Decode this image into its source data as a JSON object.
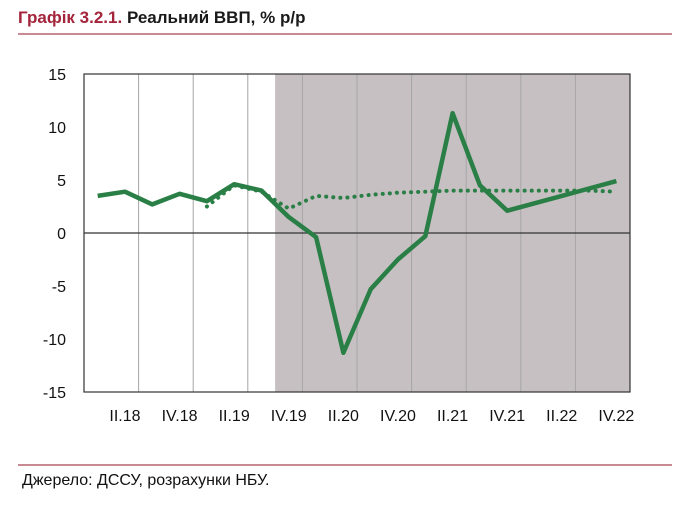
{
  "header": {
    "number": "Графік 3.2.1.",
    "title": "Реальний ВВП, % р/р"
  },
  "footer": {
    "source": "Джерело: ДССУ, розрахунки НБУ."
  },
  "colors": {
    "line": "#2a7f46",
    "shade": "#c7c0c2",
    "grid": "#a6a6a6",
    "accent": "#a4243b",
    "rule": "#c98a94"
  },
  "chart_data": {
    "type": "line",
    "ylim": [
      -15,
      15
    ],
    "yticks": [
      15,
      10,
      5,
      0,
      -5,
      -10,
      -15
    ],
    "ytick_labels": [
      "15",
      "10",
      "5",
      "0",
      "-5",
      "-10",
      "-15"
    ],
    "quarters": [
      "I.18",
      "II.18",
      "III.18",
      "IV.18",
      "I.19",
      "II.19",
      "III.19",
      "IV.19",
      "I.20",
      "II.20",
      "III.20",
      "IV.20",
      "I.21",
      "II.21",
      "III.21",
      "IV.21",
      "I.22",
      "II.22",
      "III.22",
      "IV.22"
    ],
    "xtick_labels": [
      "II.18",
      "IV.18",
      "II.19",
      "IV.19",
      "II.20",
      "IV.20",
      "II.21",
      "IV.21",
      "II.22",
      "IV.22"
    ],
    "shaded_from": "IV.19",
    "grid": "vertical",
    "series": [
      {
        "style": "solid",
        "values": [
          3.5,
          3.9,
          2.7,
          3.7,
          3.0,
          4.6,
          4.0,
          1.5,
          -0.4,
          -11.3,
          -5.3,
          -2.5,
          -0.3,
          11.3,
          4.5,
          2.1,
          2.8,
          3.5,
          4.2,
          4.9
        ]
      },
      {
        "style": "dotted",
        "values": [
          null,
          null,
          null,
          null,
          2.5,
          4.5,
          3.9,
          2.3,
          3.5,
          3.3,
          3.6,
          3.8,
          3.9,
          4.0,
          4.0,
          4.0,
          4.0,
          4.0,
          4.0,
          3.9
        ]
      }
    ]
  }
}
